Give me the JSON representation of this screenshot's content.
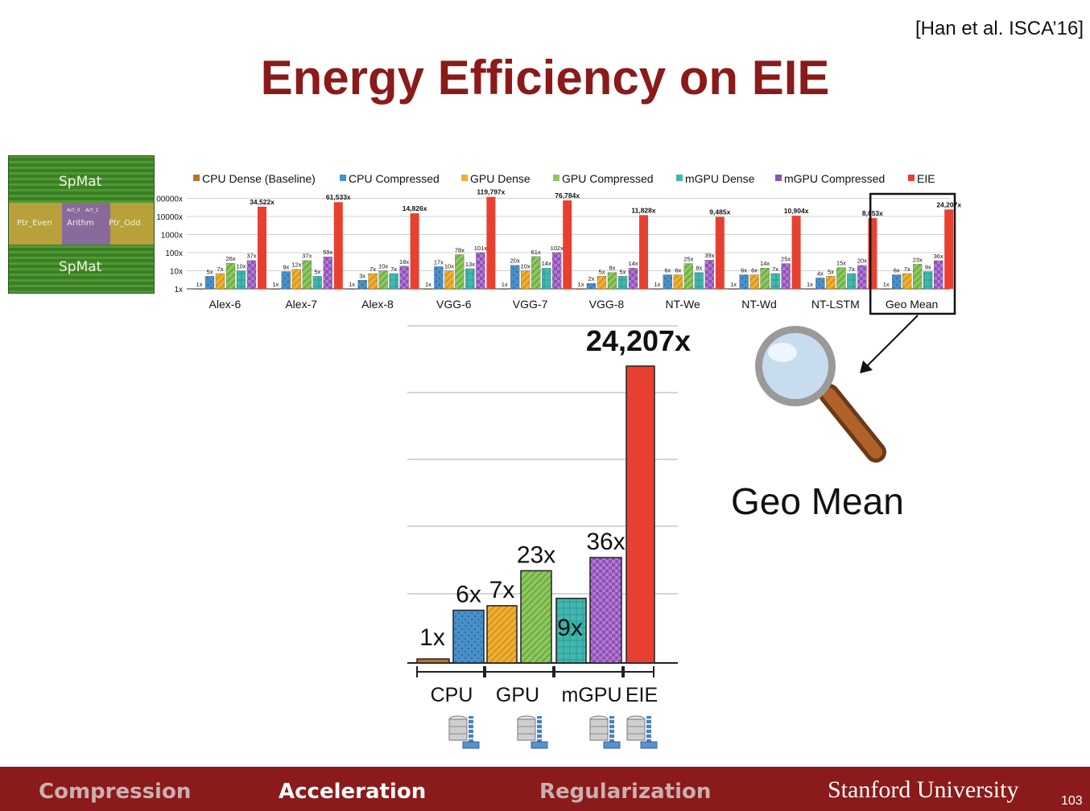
{
  "citation": "[Han et al. ISCA’16]",
  "title": "Energy Efficiency on EIE",
  "chip": {
    "labels": [
      "SpMat",
      "Ptr_Even",
      "Arithm",
      "Ptr_Odd",
      "SpMat",
      "Act_0",
      "Act_1"
    ]
  },
  "geo_mean_label": "Geo Mean",
  "colors": {
    "cpu_dense": "#b87333",
    "cpu_compressed": "#4a90c8",
    "gpu_dense": "#f0b030",
    "gpu_compressed": "#8fc860",
    "mgpu_dense": "#40b8b0",
    "mgpu_compressed": "#9050b8",
    "eie": "#e84030",
    "title": "#8b1a1a",
    "footer": "#8b1a1a"
  },
  "chart_data": [
    {
      "type": "bar",
      "scale": "log",
      "tick_labels": [
        "1x",
        "10x",
        "100x",
        "1000x",
        "10000x",
        "00000x"
      ],
      "categories": [
        "Alex-6",
        "Alex-7",
        "Alex-8",
        "VGG-6",
        "VGG-7",
        "VGG-8",
        "NT-We",
        "NT-Wd",
        "NT-LSTM",
        "Geo Mean"
      ],
      "highlighted_category": "Geo Mean",
      "series": [
        {
          "name": "CPU Dense (Baseline)",
          "values": [
            1,
            1,
            1,
            1,
            1,
            1,
            1,
            1,
            1,
            1
          ],
          "labels": [
            "1x",
            "1x",
            "1x",
            "1x",
            "1x",
            "1x",
            "1x",
            "1x",
            "1x",
            "1x"
          ]
        },
        {
          "name": "CPU Compressed",
          "values": [
            5,
            9,
            3,
            17,
            20,
            2,
            6,
            6,
            4,
            6
          ],
          "labels": [
            "5x",
            "9x",
            "3x",
            "17x",
            "20x",
            "2x",
            "6x",
            "6x",
            "4x",
            "6x"
          ]
        },
        {
          "name": "GPU Dense",
          "values": [
            7,
            12,
            7,
            10,
            10,
            5,
            6,
            6,
            5,
            7
          ],
          "labels": [
            "7x",
            "12x",
            "7x",
            "10x",
            "10x",
            "5x",
            "6x",
            "6x",
            "5x",
            "7x"
          ]
        },
        {
          "name": "GPU Compressed",
          "values": [
            26,
            37,
            10,
            78,
            61,
            8,
            25,
            14,
            15,
            23
          ],
          "labels": [
            "26x",
            "37x",
            "10x",
            "78x",
            "61x",
            "8x",
            "25x",
            "14x",
            "15x",
            "23x"
          ]
        },
        {
          "name": "mGPU Dense",
          "values": [
            10,
            5,
            7,
            13,
            14,
            5,
            8,
            7,
            7,
            9
          ],
          "labels": [
            "10x",
            "5x",
            "7x",
            "13x",
            "14x",
            "5x",
            "8x",
            "7x",
            "7x",
            "9x"
          ]
        },
        {
          "name": "mGPU Compressed",
          "values": [
            37,
            59,
            18,
            101,
            102,
            14,
            39,
            25,
            20,
            36
          ],
          "labels": [
            "37x",
            "59x",
            "18x",
            "101x",
            "102x",
            "14x",
            "39x",
            "25x",
            "20x",
            "36x"
          ]
        },
        {
          "name": "EIE",
          "values": [
            34522,
            61533,
            14826,
            119797,
            76784,
            11828,
            9485,
            10904,
            8053,
            24207
          ],
          "labels": [
            "34,522x",
            "61,533x",
            "14,826x",
            "119,797x",
            "76,784x",
            "11,828x",
            "9,485x",
            "10,904x",
            "8,053x",
            "24,207x"
          ]
        }
      ]
    },
    {
      "type": "bar",
      "scale": "log",
      "bars": [
        {
          "name": "CPU Dense",
          "value": 1,
          "label": "1x"
        },
        {
          "name": "CPU Compressed",
          "value": 6,
          "label": "6x"
        },
        {
          "name": "GPU Dense",
          "value": 7,
          "label": "7x"
        },
        {
          "name": "GPU Compressed",
          "value": 23,
          "label": "23x"
        },
        {
          "name": "mGPU Dense",
          "value": 9,
          "label": "9x"
        },
        {
          "name": "mGPU Compressed",
          "value": 36,
          "label": "36x"
        },
        {
          "name": "EIE",
          "value": 24207,
          "label": "24,207x"
        }
      ],
      "groups": [
        "CPU",
        "GPU",
        "mGPU",
        "EIE"
      ]
    }
  ],
  "footer": {
    "compression": "Compression",
    "acceleration": "Acceleration",
    "regularization": "Regularization",
    "university": "Stanford University",
    "page": "103"
  }
}
